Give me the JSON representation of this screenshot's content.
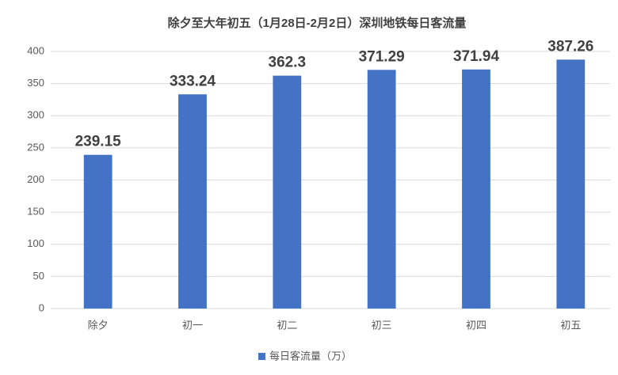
{
  "chart_data": {
    "type": "bar",
    "title": "除夕至大年初五（1月28日-2月2日）深圳地铁每日客流量",
    "categories": [
      "除夕",
      "初一",
      "初二",
      "初三",
      "初四",
      "初五"
    ],
    "series": [
      {
        "name": "每日客流量（万）",
        "color": "#4472c4",
        "values": [
          239.15,
          333.24,
          362.3,
          371.29,
          371.94,
          387.26
        ]
      }
    ],
    "ylim": [
      0,
      400
    ],
    "yticks": [
      0,
      50,
      100,
      150,
      200,
      250,
      300,
      350,
      400
    ],
    "grid": true,
    "legend": "bottom",
    "data_labels": true
  }
}
